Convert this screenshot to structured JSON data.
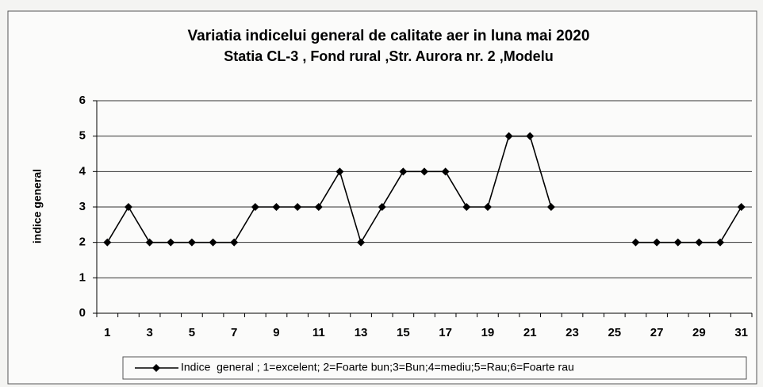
{
  "chart_data": {
    "type": "line",
    "title": "Variatia indicelui general de calitate aer in luna mai 2020",
    "subtitle": "Statia CL-3 , Fond rural ,Str. Aurora nr. 2 ,Modelu",
    "y_label": "indice general",
    "categories": [
      1,
      null,
      3,
      null,
      5,
      null,
      7,
      null,
      9,
      null,
      11,
      null,
      13,
      null,
      15,
      null,
      17,
      null,
      19,
      null,
      21,
      null,
      23,
      null,
      25,
      null,
      27,
      null,
      29,
      null,
      31
    ],
    "series": [
      {
        "name": "Indice  general ; 1=excelent; 2=Foarte bun;3=Bun;4=mediu;5=Rau;6=Foarte rau",
        "color": "#000000",
        "values": [
          2,
          3,
          2,
          2,
          2,
          2,
          2,
          3,
          3,
          3,
          3,
          4,
          2,
          3,
          4,
          4,
          4,
          3,
          3,
          5,
          5,
          3,
          null,
          null,
          null,
          2,
          2,
          2,
          2,
          2,
          3
        ]
      }
    ],
    "ylim": [
      0,
      6
    ],
    "yticks": [
      0,
      1,
      2,
      3,
      4,
      5,
      6
    ],
    "grid": true,
    "legend": "bottom"
  }
}
